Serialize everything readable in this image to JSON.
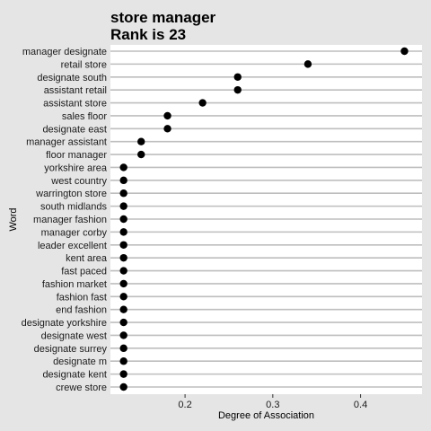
{
  "chart_data": {
    "type": "scatter",
    "title": "store manager",
    "subtitle": "Rank is 23",
    "xlabel": "Degree of Association",
    "ylabel": "Word",
    "xlim": [
      0.115,
      0.47
    ],
    "xticks": [
      0.2,
      0.3,
      0.4
    ],
    "grid": "horizontal",
    "point_color": "#000000",
    "panel_color": "#ffffff",
    "gridline_color": "#bebebe",
    "categories": [
      "manager designate",
      "retail store",
      "designate south",
      "assistant retail",
      "assistant store",
      "sales floor",
      "designate east",
      "manager assistant",
      "floor manager",
      "yorkshire area",
      "west country",
      "warrington store",
      "south midlands",
      "manager fashion",
      "manager corby",
      "leader excellent",
      "kent area",
      "fast paced",
      "fashion market",
      "fashion fast",
      "end fashion",
      "designate yorkshire",
      "designate west",
      "designate surrey",
      "designate m",
      "designate kent",
      "crewe store"
    ],
    "values": [
      0.45,
      0.34,
      0.26,
      0.26,
      0.22,
      0.18,
      0.18,
      0.15,
      0.15,
      0.13,
      0.13,
      0.13,
      0.13,
      0.13,
      0.13,
      0.13,
      0.13,
      0.13,
      0.13,
      0.13,
      0.13,
      0.13,
      0.13,
      0.13,
      0.13,
      0.13,
      0.13
    ]
  }
}
